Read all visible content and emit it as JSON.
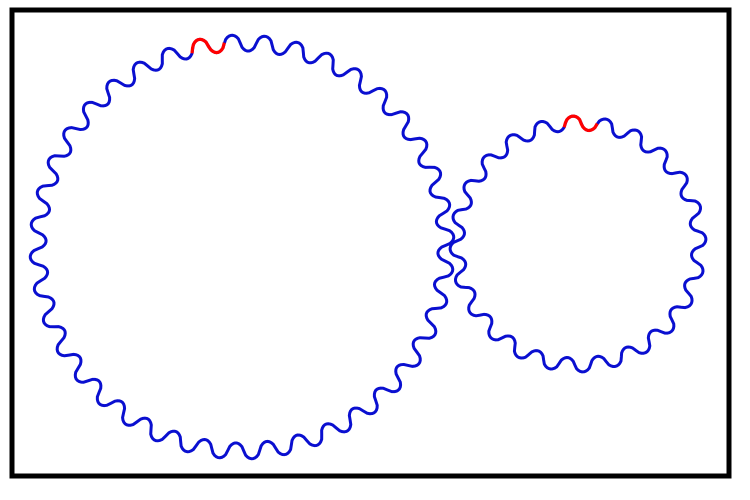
{
  "diagram": {
    "gears": [
      {
        "id": "large-gear",
        "teeth": 40,
        "highlighted_tooth_index": 0
      },
      {
        "id": "small-gear",
        "teeth": 24,
        "highlighted_tooth_index": 0
      }
    ]
  },
  "colors": {
    "gear_outline": "#0a0fd0",
    "highlight_tooth": "#ff0000",
    "frame_border": "#000000",
    "background": "#ffffff"
  }
}
